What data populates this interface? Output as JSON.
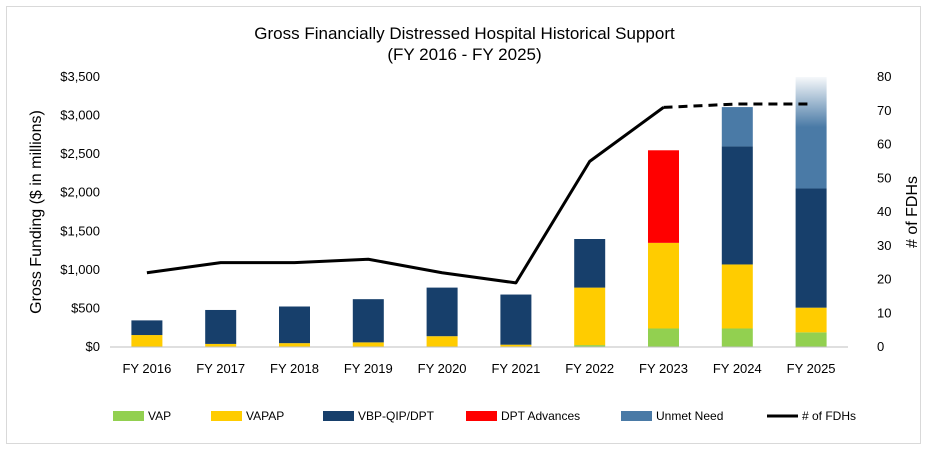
{
  "chart_data": {
    "type": "bar",
    "stacked": true,
    "title": "Gross Financially Distressed Hospital Historical Support",
    "subtitle": "(FY 2016 - FY 2025)",
    "ylabel": "Gross Funding ($ in millions)",
    "y2label": "# of FDHs",
    "ylim": [
      0,
      3500
    ],
    "y2lim": [
      0,
      80
    ],
    "yticks": [
      "$0",
      "$500",
      "$1,000",
      "$1,500",
      "$2,000",
      "$2,500",
      "$3,000",
      "$3,500"
    ],
    "y2ticks": [
      "0",
      "10",
      "20",
      "30",
      "40",
      "50",
      "60",
      "70",
      "80"
    ],
    "categories": [
      "FY 2016",
      "FY 2017",
      "FY 2018",
      "FY 2019",
      "FY 2020",
      "FY 2021",
      "FY 2022",
      "FY 2023",
      "FY 2024",
      "FY 2025"
    ],
    "series": [
      {
        "name": "VAP",
        "color": "#92d050",
        "values": [
          0,
          0,
          0,
          0,
          0,
          0,
          25,
          240,
          240,
          190
        ]
      },
      {
        "name": "VAPAP",
        "color": "#ffcc00",
        "values": [
          155,
          40,
          50,
          60,
          140,
          30,
          745,
          1110,
          830,
          320
        ]
      },
      {
        "name": "VBP-QIP/DPT",
        "color": "#173f6b",
        "values": [
          190,
          440,
          475,
          560,
          630,
          650,
          630,
          0,
          1530,
          1545
        ]
      },
      {
        "name": "DPT Advances",
        "color": "#ff0000",
        "values": [
          0,
          0,
          0,
          0,
          0,
          0,
          0,
          1200,
          0,
          0
        ]
      },
      {
        "name": "Unmet Need",
        "color": "#4a7aa6",
        "values": [
          0,
          0,
          0,
          0,
          0,
          0,
          0,
          0,
          510,
          1450
        ]
      }
    ],
    "line_series": {
      "name": "# of FDHs",
      "color": "#000000",
      "axis": "right",
      "values": [
        22,
        25,
        25,
        26,
        22,
        19,
        55,
        71,
        72,
        72
      ],
      "dashed_from_index": 7
    },
    "legend_position": "bottom",
    "grid": false
  }
}
